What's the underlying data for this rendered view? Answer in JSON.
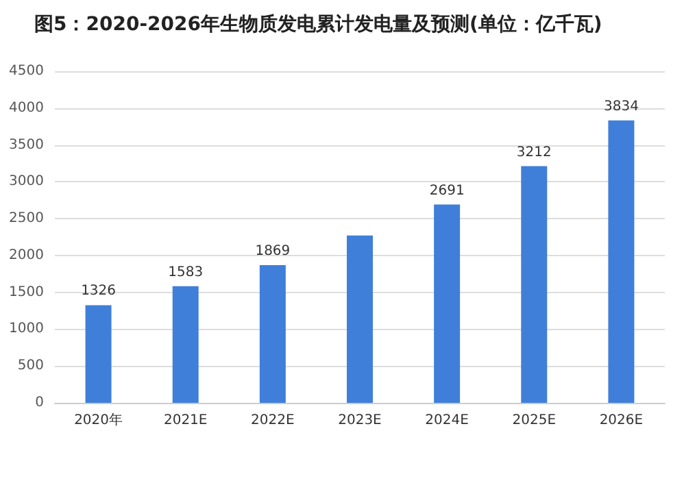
{
  "chart_data": {
    "type": "bar",
    "title": "图5：2020-2026年生物质发电累计发电量及预测(单位：亿千瓦)",
    "categories": [
      "2020年",
      "2021E",
      "2022E",
      "2023E",
      "2024E",
      "2025E",
      "2026E"
    ],
    "values": [
      1326,
      1583,
      1869,
      2270,
      2691,
      3212,
      3834
    ],
    "value_labels": [
      "1326",
      "1583",
      "1869",
      null,
      "2691",
      "3212",
      "3834"
    ],
    "color": "#3f7fd9",
    "ylim": [
      0,
      4500
    ],
    "yticks": [
      0,
      500,
      1000,
      1500,
      2000,
      2500,
      3000,
      3500,
      4000,
      4500
    ],
    "grid": "y"
  }
}
